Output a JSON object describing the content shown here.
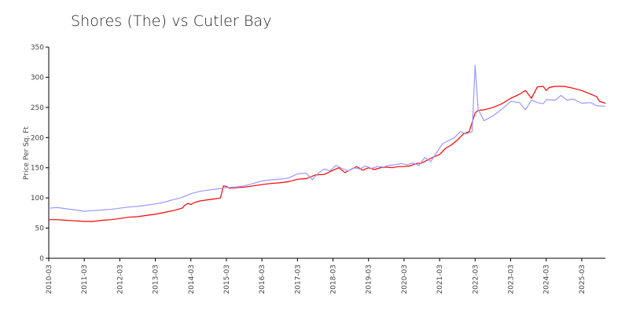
{
  "chart_data": {
    "type": "line",
    "title": "Shores (The) vs Cutler Bay",
    "xlabel": "",
    "ylabel": "Price Per Sq. Ft",
    "ylim": [
      0,
      350
    ],
    "yticks": [
      0,
      50,
      100,
      150,
      200,
      250,
      300,
      350
    ],
    "xticks": [
      "2010-03",
      "2011-03",
      "2012-03",
      "2013-03",
      "2014-03",
      "2015-03",
      "2016-03",
      "2017-03",
      "2018-03",
      "2019-03",
      "2020-03",
      "2021-03",
      "2022-03",
      "2023-03",
      "2024-03",
      "2025-03"
    ],
    "x_range": [
      "2010-03",
      "2025-11"
    ],
    "grid": false,
    "legend": "none",
    "series": [
      {
        "color": "#ff0000",
        "points": [
          [
            "2010-03",
            64
          ],
          [
            "2010-06",
            64
          ],
          [
            "2010-09",
            63
          ],
          [
            "2010-12",
            62
          ],
          [
            "2011-03",
            61
          ],
          [
            "2011-06",
            61
          ],
          [
            "2011-09",
            63
          ],
          [
            "2011-12",
            64
          ],
          [
            "2012-03",
            66
          ],
          [
            "2012-06",
            68
          ],
          [
            "2012-09",
            69
          ],
          [
            "2012-12",
            71
          ],
          [
            "2013-03",
            73
          ],
          [
            "2013-06",
            76
          ],
          [
            "2013-09",
            79
          ],
          [
            "2013-12",
            83
          ],
          [
            "2014-01",
            88
          ],
          [
            "2014-02",
            91
          ],
          [
            "2014-03",
            89
          ],
          [
            "2014-04",
            92
          ],
          [
            "2014-06",
            95
          ],
          [
            "2014-09",
            97
          ],
          [
            "2014-12",
            99
          ],
          [
            "2015-01",
            100
          ],
          [
            "2015-02",
            120
          ],
          [
            "2015-03",
            119
          ],
          [
            "2015-04",
            116
          ],
          [
            "2015-06",
            117
          ],
          [
            "2015-09",
            118
          ],
          [
            "2015-12",
            120
          ],
          [
            "2016-03",
            122
          ],
          [
            "2016-06",
            124
          ],
          [
            "2016-09",
            125
          ],
          [
            "2016-12",
            127
          ],
          [
            "2017-03",
            131
          ],
          [
            "2017-06",
            132
          ],
          [
            "2017-09",
            138
          ],
          [
            "2017-12",
            139
          ],
          [
            "2018-01",
            141
          ],
          [
            "2018-03",
            146
          ],
          [
            "2018-05",
            150
          ],
          [
            "2018-07",
            142
          ],
          [
            "2018-09",
            147
          ],
          [
            "2018-11",
            152
          ],
          [
            "2019-01",
            146
          ],
          [
            "2019-03",
            150
          ],
          [
            "2019-05",
            147
          ],
          [
            "2019-07",
            150
          ],
          [
            "2019-09",
            151
          ],
          [
            "2019-11",
            150
          ],
          [
            "2020-01",
            152
          ],
          [
            "2020-03",
            152
          ],
          [
            "2020-05",
            153
          ],
          [
            "2020-07",
            157
          ],
          [
            "2020-09",
            158
          ],
          [
            "2020-11",
            163
          ],
          [
            "2021-01",
            168
          ],
          [
            "2021-03",
            172
          ],
          [
            "2021-05",
            182
          ],
          [
            "2021-07",
            188
          ],
          [
            "2021-09",
            196
          ],
          [
            "2021-11",
            206
          ],
          [
            "2022-01",
            210
          ],
          [
            "2022-03",
            241
          ],
          [
            "2022-04",
            245
          ],
          [
            "2022-06",
            246
          ],
          [
            "2022-09",
            250
          ],
          [
            "2022-12",
            256
          ],
          [
            "2023-03",
            265
          ],
          [
            "2023-06",
            272
          ],
          [
            "2023-08",
            278
          ],
          [
            "2023-10",
            265
          ],
          [
            "2023-12",
            284
          ],
          [
            "2024-02",
            285
          ],
          [
            "2024-03",
            278
          ],
          [
            "2024-04",
            283
          ],
          [
            "2024-06",
            285
          ],
          [
            "2024-09",
            285
          ],
          [
            "2024-12",
            282
          ],
          [
            "2025-03",
            278
          ],
          [
            "2025-06",
            272
          ],
          [
            "2025-08",
            268
          ],
          [
            "2025-09",
            260
          ],
          [
            "2025-11",
            257
          ]
        ]
      },
      {
        "color": "#9999ff",
        "points": [
          [
            "2010-03",
            83
          ],
          [
            "2010-06",
            84
          ],
          [
            "2010-09",
            82
          ],
          [
            "2010-12",
            80
          ],
          [
            "2011-03",
            78
          ],
          [
            "2011-06",
            79
          ],
          [
            "2011-09",
            80
          ],
          [
            "2011-12",
            81
          ],
          [
            "2012-03",
            83
          ],
          [
            "2012-06",
            85
          ],
          [
            "2012-09",
            86
          ],
          [
            "2012-12",
            88
          ],
          [
            "2013-03",
            90
          ],
          [
            "2013-06",
            93
          ],
          [
            "2013-09",
            97
          ],
          [
            "2013-12",
            101
          ],
          [
            "2014-03",
            107
          ],
          [
            "2014-06",
            111
          ],
          [
            "2014-09",
            113
          ],
          [
            "2014-12",
            115
          ],
          [
            "2015-03",
            117
          ],
          [
            "2015-06",
            118
          ],
          [
            "2015-09",
            120
          ],
          [
            "2015-12",
            124
          ],
          [
            "2016-03",
            128
          ],
          [
            "2016-06",
            130
          ],
          [
            "2016-09",
            131
          ],
          [
            "2016-12",
            133
          ],
          [
            "2017-03",
            140
          ],
          [
            "2017-06",
            141
          ],
          [
            "2017-08",
            130
          ],
          [
            "2017-10",
            141
          ],
          [
            "2017-12",
            148
          ],
          [
            "2018-02",
            145
          ],
          [
            "2018-04",
            154
          ],
          [
            "2018-06",
            149
          ],
          [
            "2018-08",
            145
          ],
          [
            "2018-10",
            150
          ],
          [
            "2018-12",
            148
          ],
          [
            "2019-02",
            153
          ],
          [
            "2019-04",
            149
          ],
          [
            "2019-06",
            152
          ],
          [
            "2019-08",
            151
          ],
          [
            "2019-10",
            154
          ],
          [
            "2019-12",
            155
          ],
          [
            "2020-02",
            157
          ],
          [
            "2020-04",
            155
          ],
          [
            "2020-06",
            158
          ],
          [
            "2020-08",
            154
          ],
          [
            "2020-10",
            167
          ],
          [
            "2020-12",
            160
          ],
          [
            "2021-02",
            175
          ],
          [
            "2021-04",
            190
          ],
          [
            "2021-06",
            195
          ],
          [
            "2021-08",
            200
          ],
          [
            "2021-10",
            210
          ],
          [
            "2021-12",
            206
          ],
          [
            "2022-02",
            210
          ],
          [
            "2022-03",
            320
          ],
          [
            "2022-04",
            247
          ],
          [
            "2022-06",
            228
          ],
          [
            "2022-09",
            236
          ],
          [
            "2022-12",
            247
          ],
          [
            "2023-03",
            260
          ],
          [
            "2023-06",
            258
          ],
          [
            "2023-08",
            246
          ],
          [
            "2023-10",
            262
          ],
          [
            "2023-12",
            258
          ],
          [
            "2024-02",
            256
          ],
          [
            "2024-03",
            263
          ],
          [
            "2024-06",
            262
          ],
          [
            "2024-08",
            270
          ],
          [
            "2024-10",
            262
          ],
          [
            "2024-12",
            264
          ],
          [
            "2025-03",
            257
          ],
          [
            "2025-06",
            258
          ],
          [
            "2025-08",
            253
          ],
          [
            "2025-11",
            252
          ]
        ]
      }
    ]
  }
}
